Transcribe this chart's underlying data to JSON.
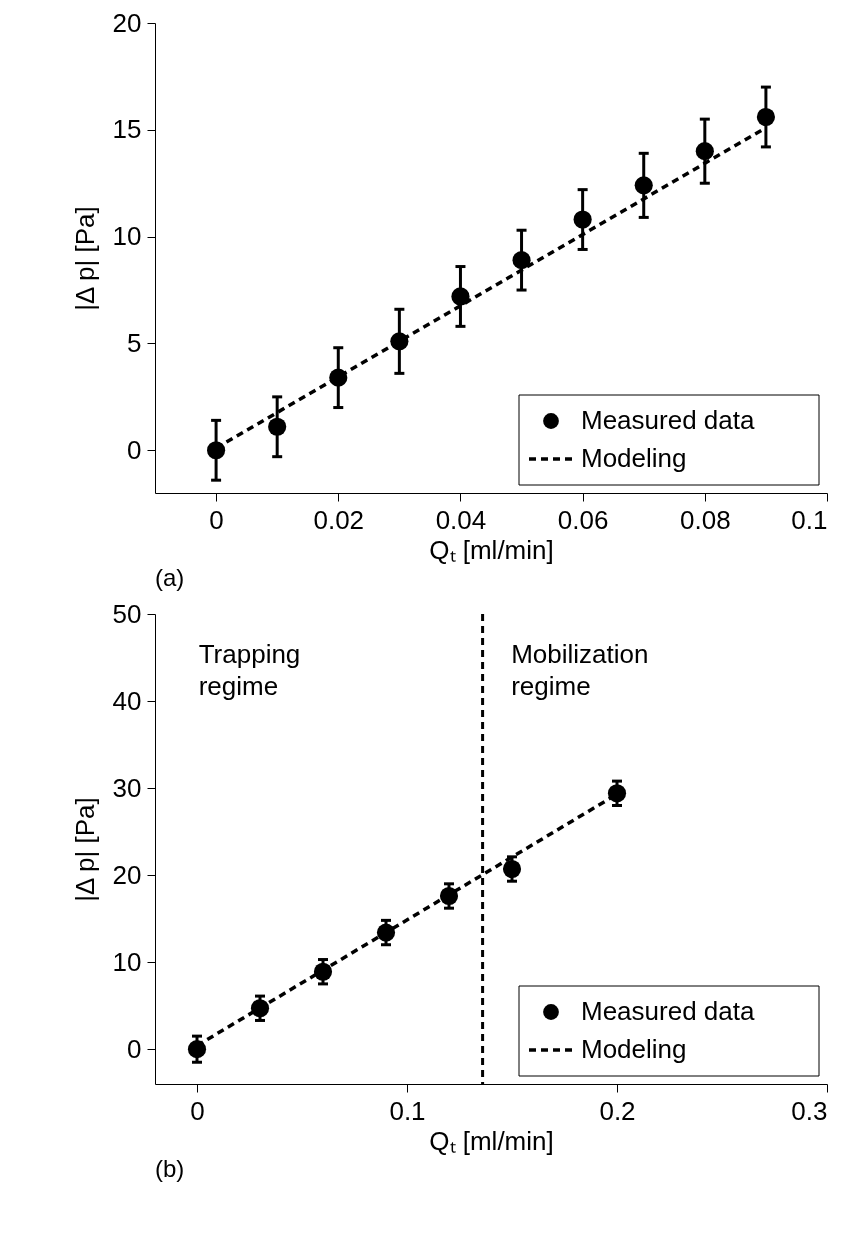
{
  "chart_data": [
    {
      "type": "scatter",
      "title": "(a)",
      "xlabel": "Qₜ [ml/min]",
      "ylabel": "|Δ p| [Pa]",
      "xlim": [
        -0.01,
        0.1
      ],
      "xticks": [
        0,
        0.02,
        0.04,
        0.06,
        0.08,
        0.1
      ],
      "ylim": [
        -2,
        20
      ],
      "yticks": [
        0,
        5,
        10,
        15,
        20
      ],
      "grid": false,
      "legend": "bottom right",
      "series": [
        {
          "name": "Measured data",
          "type": "scatter",
          "color": "#000000",
          "marker": "circle",
          "x": [
            0,
            0.01,
            0.02,
            0.03,
            0.04,
            0.05,
            0.06,
            0.07,
            0.08,
            0.09
          ],
          "values": [
            0,
            1.1,
            3.4,
            5.1,
            7.2,
            8.9,
            10.8,
            12.4,
            14.0,
            15.6
          ],
          "errors": [
            1.4,
            1.4,
            1.4,
            1.5,
            1.4,
            1.4,
            1.4,
            1.5,
            1.5,
            1.4
          ]
        },
        {
          "name": "Modeling",
          "type": "line",
          "color": "#000000",
          "line_style": "dashed",
          "x": [
            0,
            0.09
          ],
          "values": [
            0.1,
            15.1
          ]
        }
      ]
    },
    {
      "type": "scatter",
      "title": "(b)",
      "xlabel": "Qₜ [ml/min]",
      "ylabel": "|Δ p| [Pa]",
      "xlim": [
        -0.02,
        0.3
      ],
      "xticks": [
        0,
        0.1,
        0.2,
        0.3
      ],
      "ylim": [
        -4,
        50
      ],
      "yticks": [
        0,
        10,
        20,
        30,
        40,
        50
      ],
      "grid": false,
      "legend": "bottom right",
      "annotations": [
        "Trapping\nregime",
        "Mobilization\nregime"
      ],
      "ref_lines": [
        {
          "axis": "x",
          "value": 0.136,
          "color": "#000000",
          "line_style": "dashed"
        }
      ],
      "series": [
        {
          "name": "Measured data",
          "type": "scatter",
          "color": "#000000",
          "marker": "circle",
          "x": [
            0,
            0.03,
            0.06,
            0.09,
            0.12,
            0.15,
            0.2
          ],
          "values": [
            0,
            4.7,
            8.9,
            13.4,
            17.6,
            20.7,
            29.4
          ],
          "errors": [
            1.5,
            1.4,
            1.4,
            1.4,
            1.4,
            1.4,
            1.4
          ]
        },
        {
          "name": "Modeling",
          "type": "line",
          "color": "#000000",
          "line_style": "dashed",
          "x": [
            0,
            0.2
          ],
          "values": [
            0.4,
            29.3
          ]
        }
      ]
    }
  ]
}
